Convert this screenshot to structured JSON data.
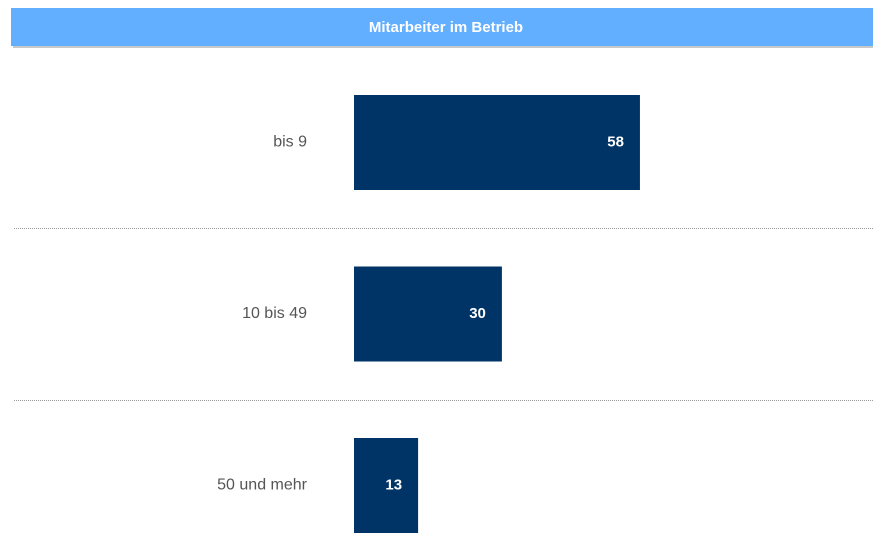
{
  "chart_data": {
    "type": "bar",
    "orientation": "horizontal",
    "title": "Mitarbeiter im Betrieb",
    "categories": [
      "bis 9",
      "10 bis 49",
      "50 und mehr"
    ],
    "values": [
      58,
      30,
      13
    ],
    "color": "#003366",
    "header_color": "#62aeff"
  }
}
